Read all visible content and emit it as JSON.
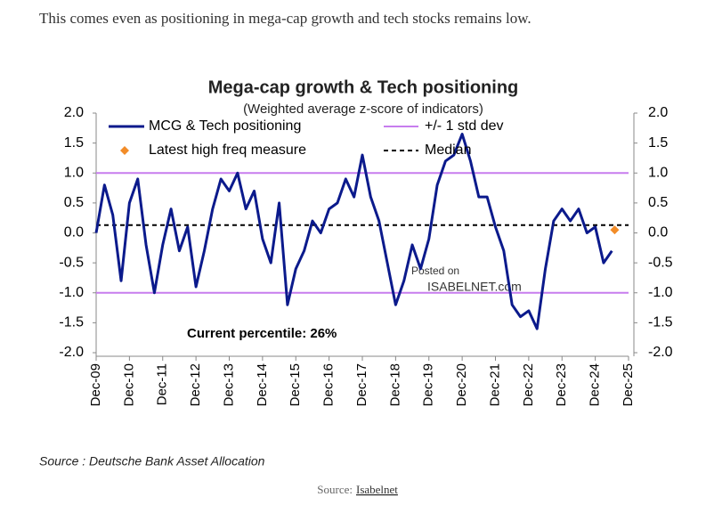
{
  "intro": "This comes even as positioning in mega-cap growth and tech stocks remains low.",
  "chart_data": {
    "type": "line",
    "title": "Mega-cap growth & Tech positioning",
    "subtitle": "(Weighted average z-score of indicators)",
    "annotation": "Current percentile: 26%",
    "watermark": [
      "Posted on",
      "ISABELNET.com"
    ],
    "source": "Source : Deutsche Bank Asset Allocation",
    "xlim": [
      "2009-12",
      "2025-12"
    ],
    "xticks": [
      {
        "value": "2009-12",
        "label": "Dec-09"
      },
      {
        "value": "2010-12",
        "label": "Dec-10"
      },
      {
        "value": "2011-12",
        "label": "Dec-11"
      },
      {
        "value": "2012-12",
        "label": "Dec-12"
      },
      {
        "value": "2013-12",
        "label": "Dec-13"
      },
      {
        "value": "2014-12",
        "label": "Dec-14"
      },
      {
        "value": "2015-12",
        "label": "Dec-15"
      },
      {
        "value": "2016-12",
        "label": "Dec-16"
      },
      {
        "value": "2017-12",
        "label": "Dec-17"
      },
      {
        "value": "2018-12",
        "label": "Dec-18"
      },
      {
        "value": "2019-12",
        "label": "Dec-19"
      },
      {
        "value": "2020-12",
        "label": "Dec-20"
      },
      {
        "value": "2021-12",
        "label": "Dec-21"
      },
      {
        "value": "2022-12",
        "label": "Dec-22"
      },
      {
        "value": "2023-12",
        "label": "Dec-23"
      },
      {
        "value": "2024-12",
        "label": "Dec-24"
      },
      {
        "value": "2025-12",
        "label": "Dec-25"
      }
    ],
    "ylim": [
      -2,
      2
    ],
    "yticks": [
      {
        "value": 2,
        "label": "2.0"
      },
      1.5,
      {
        "value": 1,
        "label": "1.0"
      },
      0.5,
      {
        "value": 0,
        "label": "0.0"
      },
      -0.5,
      {
        "value": -1,
        "label": "-1.0"
      },
      -1.5,
      {
        "value": -2,
        "label": "-2.0"
      }
    ],
    "y2lim": [
      -2,
      2
    ],
    "y2ticks": [
      {
        "value": 2,
        "label": "2.0"
      },
      1.5,
      {
        "value": 1,
        "label": "1.0"
      },
      0.5,
      {
        "value": 0,
        "label": "0.0"
      },
      -0.5,
      {
        "value": -1,
        "label": "-1.0"
      },
      -1.5,
      {
        "value": -2,
        "label": "-2.0"
      }
    ],
    "x": [
      "2009-12",
      "2010-03",
      "2010-06",
      "2010-09",
      "2010-12",
      "2011-03",
      "2011-06",
      "2011-09",
      "2011-12",
      "2012-03",
      "2012-06",
      "2012-09",
      "2012-12",
      "2013-03",
      "2013-06",
      "2013-09",
      "2013-12",
      "2014-03",
      "2014-06",
      "2014-09",
      "2014-12",
      "2015-03",
      "2015-06",
      "2015-09",
      "2015-12",
      "2016-03",
      "2016-06",
      "2016-09",
      "2016-12",
      "2017-03",
      "2017-06",
      "2017-09",
      "2017-12",
      "2018-03",
      "2018-06",
      "2018-09",
      "2018-12",
      "2019-03",
      "2019-06",
      "2019-09",
      "2019-12",
      "2020-03",
      "2020-06",
      "2020-09",
      "2020-12",
      "2021-03",
      "2021-06",
      "2021-09",
      "2021-12",
      "2022-03",
      "2022-06",
      "2022-09",
      "2022-12",
      "2023-03",
      "2023-06",
      "2023-09",
      "2023-12",
      "2024-03",
      "2024-06",
      "2024-09",
      "2024-12",
      "2025-03",
      "2025-06"
    ],
    "series": [
      {
        "name": "MCG & Tech positioning",
        "color": "#0b1a8c",
        "values": [
          0.0,
          0.8,
          0.3,
          -0.8,
          0.5,
          0.9,
          -0.2,
          -1.0,
          -0.2,
          0.4,
          -0.3,
          0.1,
          -0.9,
          -0.3,
          0.4,
          0.9,
          0.7,
          1.0,
          0.4,
          0.7,
          -0.1,
          -0.5,
          0.5,
          -1.2,
          -0.6,
          -0.3,
          0.2,
          0.0,
          0.4,
          0.5,
          0.9,
          0.6,
          1.3,
          0.6,
          0.2,
          -0.5,
          -1.2,
          -0.8,
          -0.2,
          -0.6,
          -0.1,
          0.8,
          1.2,
          1.3,
          1.65,
          1.2,
          0.6,
          0.6,
          0.1,
          -0.3,
          -1.2,
          -1.4,
          -1.3,
          -1.6,
          -0.6,
          0.2,
          0.4,
          0.2,
          0.4,
          0.0,
          0.1,
          -0.5,
          -0.3
        ]
      }
    ],
    "band": {
      "name": "+/- 1 std dev",
      "color": "#c77dee",
      "values": [
        1,
        -1
      ]
    },
    "median": {
      "name": "Median",
      "color": "#000000",
      "value": 0.13
    },
    "latest": {
      "name": "Latest high freq measure",
      "color": "#f28c28",
      "x": "2025-07",
      "value": 0.05
    }
  },
  "caption": {
    "prefix": "Source:",
    "link": "Isabelnet"
  }
}
